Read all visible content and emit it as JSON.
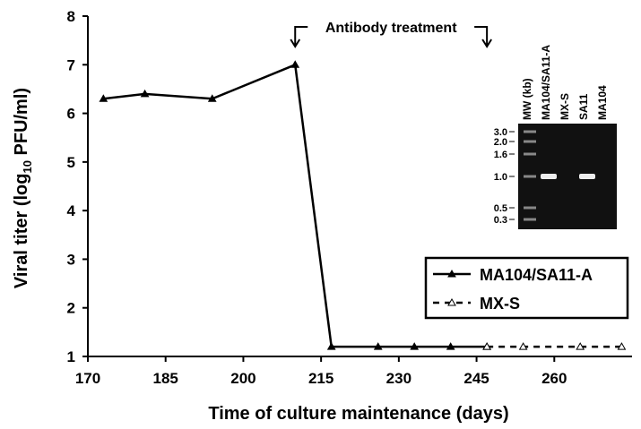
{
  "chart_data": {
    "type": "line",
    "ylabel": [
      "Viral titer (log",
      "10",
      " PFU/ml)"
    ],
    "xlabel": "Time of culture maintenance (days)",
    "annotation": "Antibody treatment",
    "annotation_x": [
      210,
      247
    ],
    "xlim": [
      170,
      275
    ],
    "xticks": [
      170,
      185,
      200,
      215,
      230,
      245,
      260
    ],
    "ylim": [
      1,
      8
    ],
    "yticks": [
      1,
      2,
      3,
      4,
      5,
      6,
      7,
      8
    ],
    "legend": "right",
    "series": [
      {
        "name": "MA104/SA11-A",
        "color": "#000000",
        "style": "solid",
        "marker": "filled",
        "x": [
          173,
          181,
          194,
          210,
          217,
          226,
          233,
          240,
          247
        ],
        "values": [
          6.3,
          6.4,
          6.3,
          7.0,
          1.2,
          1.2,
          1.2,
          1.2,
          1.2
        ]
      },
      {
        "name": "MX-S",
        "color": "#000000",
        "style": "dashed",
        "marker": "open",
        "x": [
          247,
          254,
          265,
          273
        ],
        "values": [
          1.2,
          1.2,
          1.2,
          1.2
        ]
      }
    ],
    "inset": {
      "lanes": [
        "MW (kb)",
        "MA104/SA11-A",
        "MX-S",
        "SA11",
        "MA104"
      ],
      "sizes": [
        "3.0",
        "2.0",
        "1.6",
        "1.0",
        "0.5",
        "0.3"
      ]
    }
  }
}
